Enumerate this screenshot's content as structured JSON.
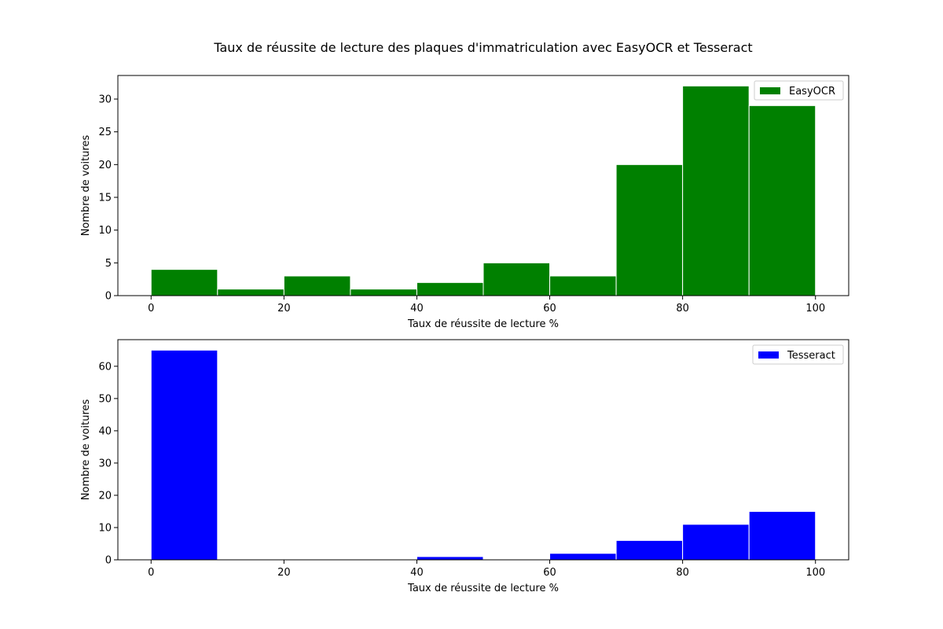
{
  "figure_title": "Taux de réussite de lecture des plaques d'immatriculation avec EasyOCR et Tesseract",
  "chart_data": [
    {
      "type": "bar",
      "title": "",
      "xlabel": "Taux de réussite de lecture %",
      "ylabel": "Nombre de voitures",
      "bin_edges": [
        0,
        10,
        20,
        30,
        40,
        50,
        60,
        70,
        80,
        90,
        100
      ],
      "series": [
        {
          "name": "EasyOCR",
          "color": "#008000",
          "values": [
            4,
            1,
            3,
            1,
            2,
            5,
            3,
            20,
            32,
            29
          ]
        }
      ],
      "xlim": [
        -5,
        105
      ],
      "ylim": [
        0,
        33.6
      ],
      "xticks": [
        0,
        20,
        40,
        60,
        80,
        100
      ],
      "yticks": [
        0,
        5,
        10,
        15,
        20,
        25,
        30
      ],
      "legend_position": "top-right",
      "grid": false
    },
    {
      "type": "bar",
      "title": "",
      "xlabel": "Taux de réussite de lecture %",
      "ylabel": "Nombre de voitures",
      "bin_edges": [
        0,
        10,
        20,
        30,
        40,
        50,
        60,
        70,
        80,
        90,
        100
      ],
      "series": [
        {
          "name": "Tesseract",
          "color": "#0000ff",
          "values": [
            65,
            0,
            0,
            0,
            1,
            0,
            2,
            6,
            11,
            15
          ]
        }
      ],
      "xlim": [
        -5,
        105
      ],
      "ylim": [
        0,
        68.25
      ],
      "xticks": [
        0,
        20,
        40,
        60,
        80,
        100
      ],
      "yticks": [
        0,
        10,
        20,
        30,
        40,
        50,
        60
      ],
      "legend_position": "top-right",
      "grid": false
    }
  ]
}
